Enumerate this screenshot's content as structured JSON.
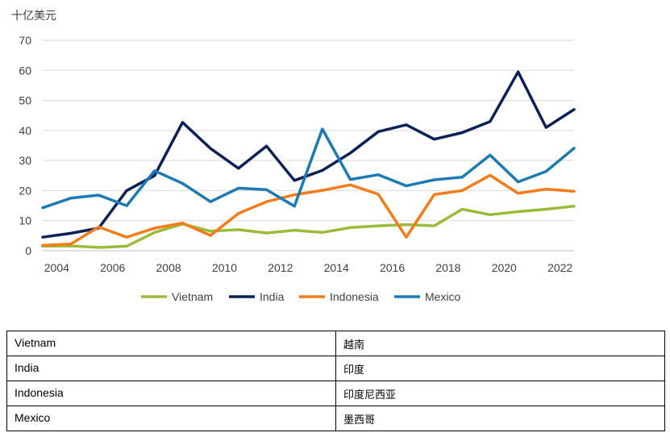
{
  "chart_data": {
    "type": "line",
    "unit_label": "十亿美元",
    "ylim": [
      0,
      70
    ],
    "y_ticks": [
      0,
      10,
      20,
      30,
      40,
      50,
      60,
      70
    ],
    "x_ticks": [
      2004,
      2006,
      2008,
      2010,
      2012,
      2014,
      2016,
      2018,
      2020,
      2022
    ],
    "xlim": [
      2003.5,
      2022.5
    ],
    "grid": true,
    "legend_position": "bottom",
    "x": [
      2003.5,
      2004.5,
      2005.5,
      2006.5,
      2007.5,
      2008.5,
      2009.5,
      2010.5,
      2011.5,
      2012.5,
      2013.5,
      2014.5,
      2015.5,
      2016.5,
      2017.5,
      2018.5,
      2019.5,
      2020.5,
      2021.5,
      2022.5
    ],
    "series": [
      {
        "name": "Vietnam",
        "color": "#9BBB3B",
        "values": [
          1.5,
          1.6,
          1.1,
          1.5,
          6.1,
          8.9,
          6.5,
          7.0,
          5.9,
          6.8,
          6.1,
          7.7,
          8.3,
          8.7,
          8.3,
          13.8,
          12.0,
          13.0,
          13.8,
          14.8
        ]
      },
      {
        "name": "India",
        "color": "#0B2158",
        "values": [
          4.5,
          5.8,
          7.5,
          20.0,
          25.0,
          42.7,
          34.0,
          27.4,
          34.8,
          23.4,
          26.7,
          32.5,
          39.6,
          41.9,
          37.1,
          39.3,
          43.0,
          59.5,
          41.0,
          47.0
        ]
      },
      {
        "name": "Indonesia",
        "color": "#F47C1A",
        "values": [
          1.8,
          2.2,
          7.9,
          4.5,
          7.5,
          9.2,
          5.1,
          12.4,
          16.3,
          18.6,
          20.1,
          21.9,
          18.8,
          4.5,
          18.7,
          20.0,
          25.1,
          19.1,
          20.5,
          19.8
        ]
      },
      {
        "name": "Mexico",
        "color": "#1C7BB3",
        "values": [
          14.3,
          17.5,
          18.5,
          15.0,
          26.6,
          22.4,
          16.3,
          20.8,
          20.3,
          14.8,
          40.5,
          23.7,
          25.3,
          21.6,
          23.6,
          24.5,
          31.8,
          22.9,
          26.4,
          34.1
        ]
      }
    ]
  },
  "translations": [
    {
      "en": "Vietnam",
      "zh": "越南"
    },
    {
      "en": "India",
      "zh": "印度"
    },
    {
      "en": "Indonesia",
      "zh": "印度尼西亚"
    },
    {
      "en": "Mexico",
      "zh": "墨西哥"
    }
  ]
}
